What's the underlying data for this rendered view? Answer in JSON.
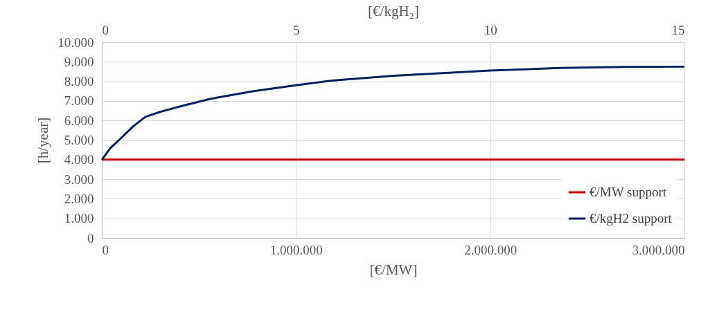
{
  "chart_data": {
    "type": "line",
    "xlabel": "[€/MW]",
    "ylabel": "[h/year]",
    "x2label": "[€/kgH₂]",
    "xlim": [
      0,
      3000000
    ],
    "xticks": [
      0,
      {
        "value": 1000000,
        "label": "1.000.000"
      },
      {
        "value": 2000000,
        "label": "2.000.000"
      },
      {
        "value": 3000000,
        "label": "3.000.000"
      }
    ],
    "x2lim": [
      0,
      15
    ],
    "x2ticks": [
      0,
      5,
      10,
      15
    ],
    "ylim": [
      0,
      10000
    ],
    "yticks": [
      0,
      {
        "value": 1000,
        "label": "1.000"
      },
      {
        "value": 2000,
        "label": "2.000"
      },
      {
        "value": 3000,
        "label": "3.000"
      },
      {
        "value": 4000,
        "label": "4.000"
      },
      {
        "value": 5000,
        "label": "5.000"
      },
      {
        "value": 6000,
        "label": "6.000"
      },
      {
        "value": 7000,
        "label": "7.000"
      },
      {
        "value": 8000,
        "label": "8.000"
      },
      {
        "value": 9000,
        "label": "9.000"
      },
      {
        "value": 10000,
        "label": "10.000"
      }
    ],
    "grid": true,
    "legend": "bottom right",
    "marker": "none",
    "line_style": "solid",
    "series": [
      {
        "name": "€/MW support",
        "color": "#c00000",
        "x": [
          0,
          3000000
        ],
        "values": [
          4000,
          4000
        ]
      },
      {
        "name": "€/kgH2 support",
        "color": "#002060",
        "x": [
          0,
          44000,
          86000,
          163000,
          223000,
          300000,
          419000,
          562000,
          776000,
          1000000,
          1177000,
          1505000,
          2000000,
          2360000,
          2690000,
          3000000
        ],
        "values": [
          4000,
          4590,
          4980,
          5710,
          6180,
          6440,
          6760,
          7110,
          7490,
          7800,
          8030,
          8290,
          8550,
          8680,
          8740,
          8750
        ]
      }
    ]
  }
}
